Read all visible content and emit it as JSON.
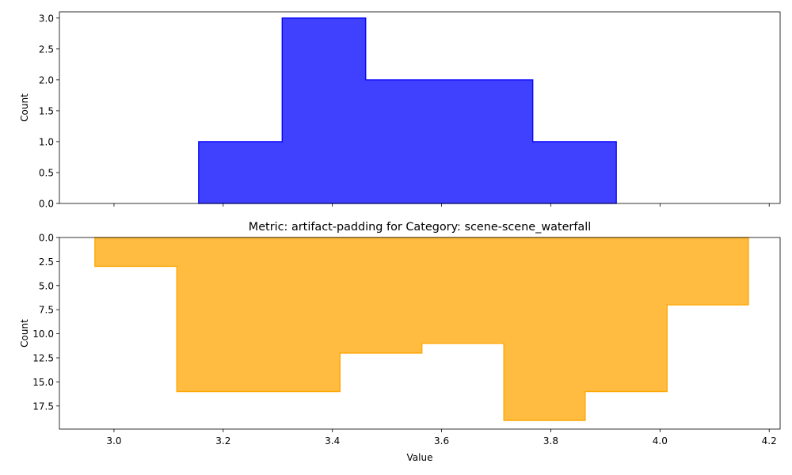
{
  "chart_data": [
    {
      "type": "bar",
      "title": "",
      "xlabel": "",
      "ylabel": "Count",
      "xlim": [
        2.9,
        4.22
      ],
      "ylim": [
        0,
        3.1
      ],
      "y_inverted": false,
      "grid": false,
      "color": "#0000ff",
      "fill_alpha": 0.75,
      "bins": [
        {
          "x0": 3.155,
          "x1": 3.308,
          "count": 1
        },
        {
          "x0": 3.308,
          "x1": 3.461,
          "count": 3
        },
        {
          "x0": 3.461,
          "x1": 3.614,
          "count": 2
        },
        {
          "x0": 3.614,
          "x1": 3.767,
          "count": 2
        },
        {
          "x0": 3.767,
          "x1": 3.92,
          "count": 1
        }
      ],
      "x_ticks": [
        3.0,
        3.2,
        3.4,
        3.6,
        3.8,
        4.0,
        4.2
      ],
      "x_tick_labels_shown": false,
      "y_ticks": [
        {
          "v": 0.0,
          "label": "0.0"
        },
        {
          "v": 0.5,
          "label": "0.5"
        },
        {
          "v": 1.0,
          "label": "1.0"
        },
        {
          "v": 1.5,
          "label": "1.5"
        },
        {
          "v": 2.0,
          "label": "2.0"
        },
        {
          "v": 2.5,
          "label": "2.5"
        },
        {
          "v": 3.0,
          "label": "3.0"
        }
      ]
    },
    {
      "type": "bar",
      "title": "Metric: artifact-padding for Category: scene-scene_waterfall",
      "xlabel": "Value",
      "ylabel": "Count",
      "xlim": [
        2.9,
        4.22
      ],
      "ylim": [
        0,
        19.9
      ],
      "y_inverted": true,
      "grid": false,
      "color": "#ffa500",
      "fill_alpha": 0.75,
      "bins": [
        {
          "x0": 2.965,
          "x1": 3.115,
          "count": 3
        },
        {
          "x0": 3.115,
          "x1": 3.265,
          "count": 16
        },
        {
          "x0": 3.265,
          "x1": 3.414,
          "count": 16
        },
        {
          "x0": 3.414,
          "x1": 3.564,
          "count": 12
        },
        {
          "x0": 3.564,
          "x1": 3.714,
          "count": 11
        },
        {
          "x0": 3.714,
          "x1": 3.863,
          "count": 19
        },
        {
          "x0": 3.863,
          "x1": 4.013,
          "count": 16
        },
        {
          "x0": 4.013,
          "x1": 4.162,
          "count": 7
        }
      ],
      "x_ticks": [
        3.0,
        3.2,
        3.4,
        3.6,
        3.8,
        4.0,
        4.2
      ],
      "x_tick_labels": [
        "3.0",
        "3.2",
        "3.4",
        "3.6",
        "3.8",
        "4.0",
        "4.2"
      ],
      "x_tick_labels_shown": true,
      "y_ticks": [
        {
          "v": 0.0,
          "label": "0.0"
        },
        {
          "v": 2.5,
          "label": "2.5"
        },
        {
          "v": 5.0,
          "label": "5.0"
        },
        {
          "v": 7.5,
          "label": "7.5"
        },
        {
          "v": 10.0,
          "label": "10.0"
        },
        {
          "v": 12.5,
          "label": "12.5"
        },
        {
          "v": 15.0,
          "label": "15.0"
        },
        {
          "v": 17.5,
          "label": "17.5"
        }
      ]
    }
  ]
}
